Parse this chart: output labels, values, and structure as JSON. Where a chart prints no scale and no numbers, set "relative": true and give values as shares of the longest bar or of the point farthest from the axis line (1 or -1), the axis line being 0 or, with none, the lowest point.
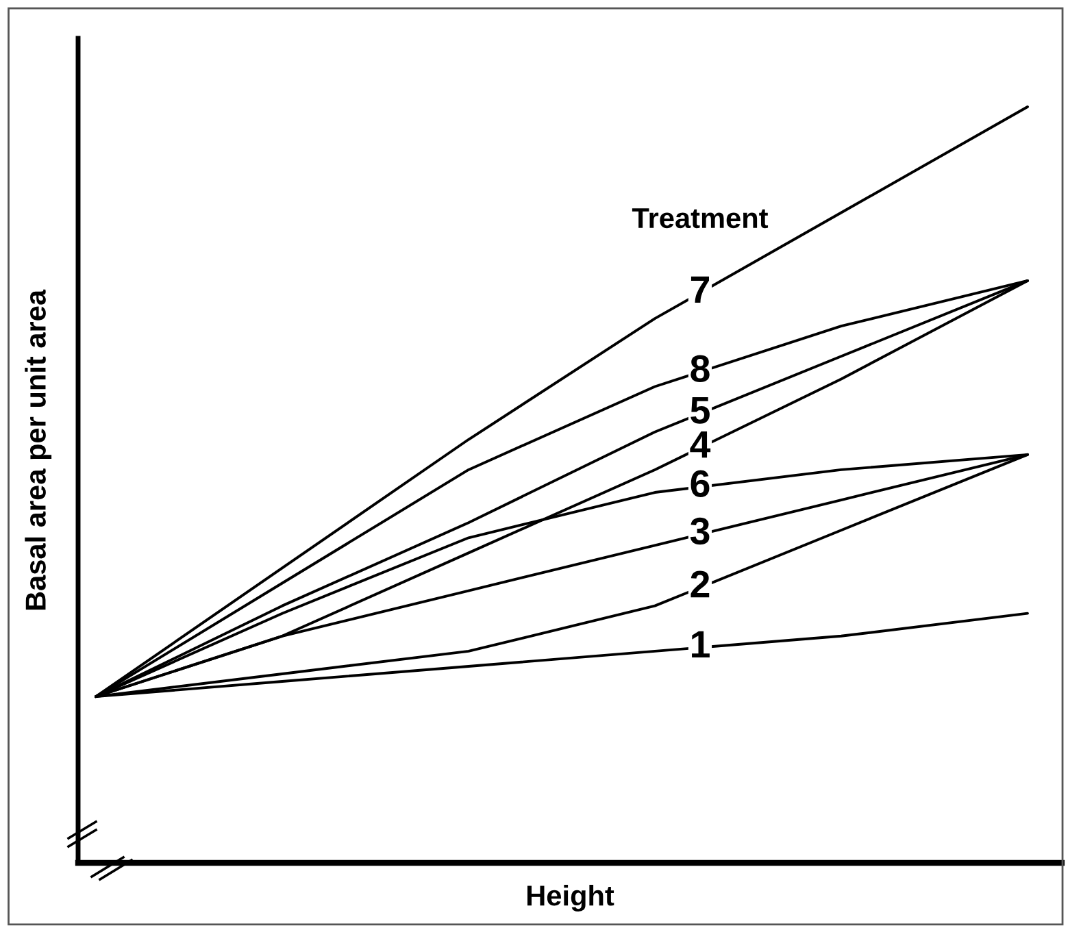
{
  "chart_data": {
    "type": "line",
    "relative": true,
    "xlabel": "Height",
    "ylabel": "Basal area per unit area",
    "legend_title": "Treatment",
    "categories": [
      null,
      null,
      null,
      null,
      null,
      null
    ],
    "series": [
      {
        "name": "7",
        "color": "#000000",
        "values": [
          0.22,
          0.39,
          0.56,
          0.72,
          0.86,
          1.0
        ]
      },
      {
        "name": "8",
        "color": "#000000",
        "values": [
          0.22,
          0.37,
          0.52,
          0.63,
          0.71,
          0.77
        ]
      },
      {
        "name": "5",
        "color": "#000000",
        "values": [
          0.22,
          0.34,
          0.45,
          0.57,
          0.67,
          0.77
        ]
      },
      {
        "name": "4",
        "color": "#000000",
        "values": [
          0.22,
          0.3,
          0.41,
          0.52,
          0.64,
          0.77
        ]
      },
      {
        "name": "6",
        "color": "#000000",
        "values": [
          0.22,
          0.33,
          0.43,
          0.49,
          0.52,
          0.54
        ]
      },
      {
        "name": "3",
        "color": "#000000",
        "values": [
          0.22,
          0.3,
          0.36,
          0.42,
          0.48,
          0.54
        ]
      },
      {
        "name": "2",
        "color": "#000000",
        "values": [
          0.22,
          0.25,
          0.28,
          0.34,
          0.44,
          0.54
        ]
      },
      {
        "name": "1",
        "color": "#000000",
        "values": [
          0.22,
          0.24,
          0.26,
          0.28,
          0.3,
          0.33
        ]
      }
    ],
    "marker": "none",
    "line_style": "solid",
    "grid": false
  }
}
